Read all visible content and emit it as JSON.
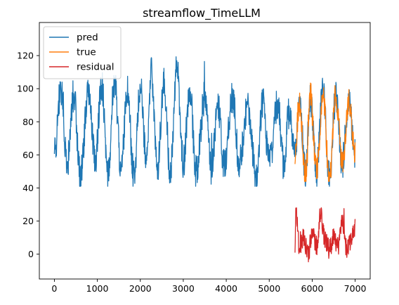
{
  "chart_data": {
    "type": "line",
    "title": "streamflow_TimeLLM",
    "xlabel": "",
    "ylabel": "",
    "xlim": [
      -350,
      7350
    ],
    "ylim": [
      -15,
      140
    ],
    "x_ticks": [
      0,
      1000,
      2000,
      3000,
      4000,
      5000,
      6000,
      7000
    ],
    "y_ticks": [
      0,
      20,
      40,
      60,
      80,
      100,
      120
    ],
    "grid": false,
    "legend_position": "top-left",
    "series": [
      {
        "name": "pred",
        "color": "#1f77b4",
        "x_range": [
          0,
          7000
        ],
        "approx_points": [
          [
            0,
            60
          ],
          [
            150,
            100
          ],
          [
            300,
            55
          ],
          [
            450,
            98
          ],
          [
            600,
            48
          ],
          [
            800,
            100
          ],
          [
            950,
            55
          ],
          [
            1100,
            102
          ],
          [
            1250,
            50
          ],
          [
            1400,
            105
          ],
          [
            1550,
            52
          ],
          [
            1700,
            98
          ],
          [
            1850,
            48
          ],
          [
            2000,
            100
          ],
          [
            2150,
            55
          ],
          [
            2250,
            110
          ],
          [
            2400,
            52
          ],
          [
            2550,
            104
          ],
          [
            2700,
            50
          ],
          [
            2850,
            112
          ],
          [
            3000,
            55
          ],
          [
            3150,
            100
          ],
          [
            3300,
            50
          ],
          [
            3500,
            95
          ],
          [
            3650,
            52
          ],
          [
            3800,
            90
          ],
          [
            3950,
            55
          ],
          [
            4150,
            95
          ],
          [
            4300,
            55
          ],
          [
            4500,
            90
          ],
          [
            4700,
            44
          ],
          [
            4850,
            92
          ],
          [
            5000,
            55
          ],
          [
            5200,
            92
          ],
          [
            5350,
            52
          ],
          [
            5450,
            85
          ],
          [
            5600,
            60
          ],
          [
            5700,
            92
          ],
          [
            5850,
            48
          ],
          [
            5950,
            96
          ],
          [
            6100,
            50
          ],
          [
            6250,
            98
          ],
          [
            6400,
            46
          ],
          [
            6550,
            95
          ],
          [
            6700,
            55
          ],
          [
            6850,
            92
          ],
          [
            7000,
            60
          ]
        ],
        "max_approx": 132,
        "min_approx": 41
      },
      {
        "name": "true",
        "color": "#ff7f0e",
        "x_range": [
          5600,
          7000
        ],
        "approx_points": [
          [
            5600,
            60
          ],
          [
            5700,
            92
          ],
          [
            5850,
            47
          ],
          [
            5950,
            98
          ],
          [
            6100,
            50
          ],
          [
            6250,
            96
          ],
          [
            6400,
            45
          ],
          [
            6550,
            97
          ],
          [
            6700,
            55
          ],
          [
            6850,
            92
          ],
          [
            7000,
            62
          ]
        ],
        "max_approx": 108,
        "min_approx": 44
      },
      {
        "name": "residual",
        "color": "#d62728",
        "x_range": [
          5600,
          7000
        ],
        "approx_points": [
          [
            5600,
            2
          ],
          [
            5620,
            28
          ],
          [
            5700,
            5
          ],
          [
            5800,
            10
          ],
          [
            5900,
            0
          ],
          [
            6000,
            12
          ],
          [
            6100,
            5
          ],
          [
            6200,
            24
          ],
          [
            6300,
            8
          ],
          [
            6400,
            3
          ],
          [
            6500,
            10
          ],
          [
            6600,
            5
          ],
          [
            6700,
            20
          ],
          [
            6800,
            3
          ],
          [
            6900,
            8
          ],
          [
            7000,
            16
          ]
        ],
        "max_approx": 28,
        "min_approx": -8
      }
    ]
  }
}
